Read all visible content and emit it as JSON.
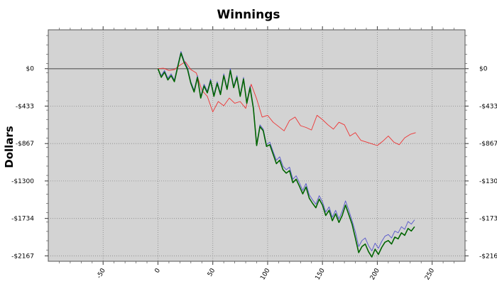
{
  "chart_data": {
    "type": "line",
    "title": "Winnings",
    "xlabel": "",
    "ylabel": "Dollars",
    "xlim": [
      -100,
      280
    ],
    "ylim": [
      -2230,
      450
    ],
    "grid": true,
    "legend": "none",
    "x_ticks": [
      -50,
      0,
      50,
      100,
      150,
      200,
      250
    ],
    "y_ticks": [
      {
        "value": 0,
        "label": "$0"
      },
      {
        "value": -433,
        "label": "-$433"
      },
      {
        "value": -867,
        "label": "-$867"
      },
      {
        "value": -1300,
        "label": "-$1300"
      },
      {
        "value": -1734,
        "label": "-$1734"
      },
      {
        "value": -2167,
        "label": "-$2167"
      }
    ],
    "zero_line": 0,
    "colors": {
      "plot_bg": "#d3d3d3",
      "red": "#ee3333",
      "blue": "#5555cc",
      "green": "#006400",
      "zero": "#777777"
    },
    "series": [
      {
        "color": "#ee3333",
        "x": [
          0,
          5,
          10,
          15,
          20,
          25,
          30,
          35,
          40,
          45,
          50,
          55,
          60,
          65,
          70,
          75,
          80,
          85,
          90,
          95,
          100,
          105,
          110,
          115,
          120,
          125,
          130,
          135,
          140,
          145,
          150,
          155,
          160,
          165,
          170,
          175,
          180,
          185,
          190,
          195,
          200,
          205,
          210,
          215,
          220,
          225,
          230,
          235
        ],
        "y": [
          0,
          5,
          -20,
          -10,
          40,
          80,
          -10,
          -50,
          -250,
          -320,
          -500,
          -380,
          -430,
          -340,
          -400,
          -380,
          -460,
          -180,
          -350,
          -560,
          -540,
          -620,
          -670,
          -720,
          -600,
          -560,
          -660,
          -680,
          -710,
          -540,
          -590,
          -650,
          -700,
          -620,
          -650,
          -780,
          -740,
          -830,
          -850,
          -870,
          -890,
          -840,
          -780,
          -850,
          -880,
          -800,
          -760,
          -740
        ]
      },
      {
        "color": "#5555cc",
        "x": [
          0,
          3,
          6,
          9,
          12,
          15,
          18,
          21,
          24,
          27,
          30,
          33,
          36,
          39,
          42,
          45,
          48,
          51,
          54,
          57,
          60,
          63,
          66,
          69,
          72,
          75,
          78,
          81,
          84,
          87,
          90,
          93,
          96,
          99,
          102,
          105,
          108,
          111,
          114,
          117,
          120,
          123,
          126,
          129,
          132,
          135,
          138,
          141,
          144,
          147,
          150,
          153,
          156,
          159,
          162,
          165,
          168,
          171,
          174,
          177,
          180,
          183,
          186,
          189,
          192,
          195,
          198,
          201,
          204,
          207,
          210,
          213,
          216,
          219,
          222,
          225,
          228,
          231,
          234
        ],
        "y": [
          0,
          -80,
          -20,
          -110,
          -60,
          -130,
          40,
          200,
          90,
          10,
          -150,
          -250,
          -80,
          -320,
          -180,
          -260,
          -120,
          -300,
          -150,
          -280,
          -60,
          -220,
          0,
          -200,
          -80,
          -300,
          -100,
          -380,
          -200,
          -440,
          -870,
          -650,
          -700,
          -880,
          -850,
          -960,
          -1060,
          -1020,
          -1130,
          -1170,
          -1140,
          -1280,
          -1240,
          -1320,
          -1410,
          -1330,
          -1460,
          -1520,
          -1570,
          -1470,
          -1540,
          -1660,
          -1600,
          -1720,
          -1640,
          -1740,
          -1650,
          -1530,
          -1640,
          -1760,
          -1890,
          -2060,
          -1990,
          -1960,
          -2050,
          -2110,
          -2020,
          -2080,
          -2000,
          -1940,
          -1920,
          -1960,
          -1880,
          -1900,
          -1830,
          -1860,
          -1770,
          -1800,
          -1750
        ]
      },
      {
        "color": "#006400",
        "x": [
          0,
          3,
          6,
          9,
          12,
          15,
          18,
          21,
          24,
          27,
          30,
          33,
          36,
          39,
          42,
          45,
          48,
          51,
          54,
          57,
          60,
          63,
          66,
          69,
          72,
          75,
          78,
          81,
          84,
          87,
          90,
          93,
          96,
          99,
          102,
          105,
          108,
          111,
          114,
          117,
          120,
          123,
          126,
          129,
          132,
          135,
          138,
          141,
          144,
          147,
          150,
          153,
          156,
          159,
          162,
          165,
          168,
          171,
          174,
          177,
          180,
          183,
          186,
          189,
          192,
          195,
          198,
          201,
          204,
          207,
          210,
          213,
          216,
          219,
          222,
          225,
          228,
          231,
          234
        ],
        "y": [
          0,
          -100,
          -40,
          -130,
          -80,
          -150,
          20,
          180,
          70,
          -10,
          -170,
          -270,
          -100,
          -340,
          -200,
          -280,
          -140,
          -320,
          -170,
          -300,
          -80,
          -240,
          -20,
          -220,
          -100,
          -320,
          -120,
          -400,
          -220,
          -460,
          -890,
          -670,
          -720,
          -900,
          -880,
          -990,
          -1100,
          -1060,
          -1170,
          -1210,
          -1180,
          -1320,
          -1280,
          -1360,
          -1450,
          -1370,
          -1500,
          -1560,
          -1610,
          -1510,
          -1580,
          -1700,
          -1640,
          -1760,
          -1680,
          -1780,
          -1700,
          -1580,
          -1690,
          -1800,
          -1960,
          -2130,
          -2060,
          -2030,
          -2120,
          -2180,
          -2090,
          -2150,
          -2070,
          -2010,
          -1990,
          -2030,
          -1950,
          -1970,
          -1900,
          -1930,
          -1850,
          -1880,
          -1830
        ]
      }
    ]
  }
}
